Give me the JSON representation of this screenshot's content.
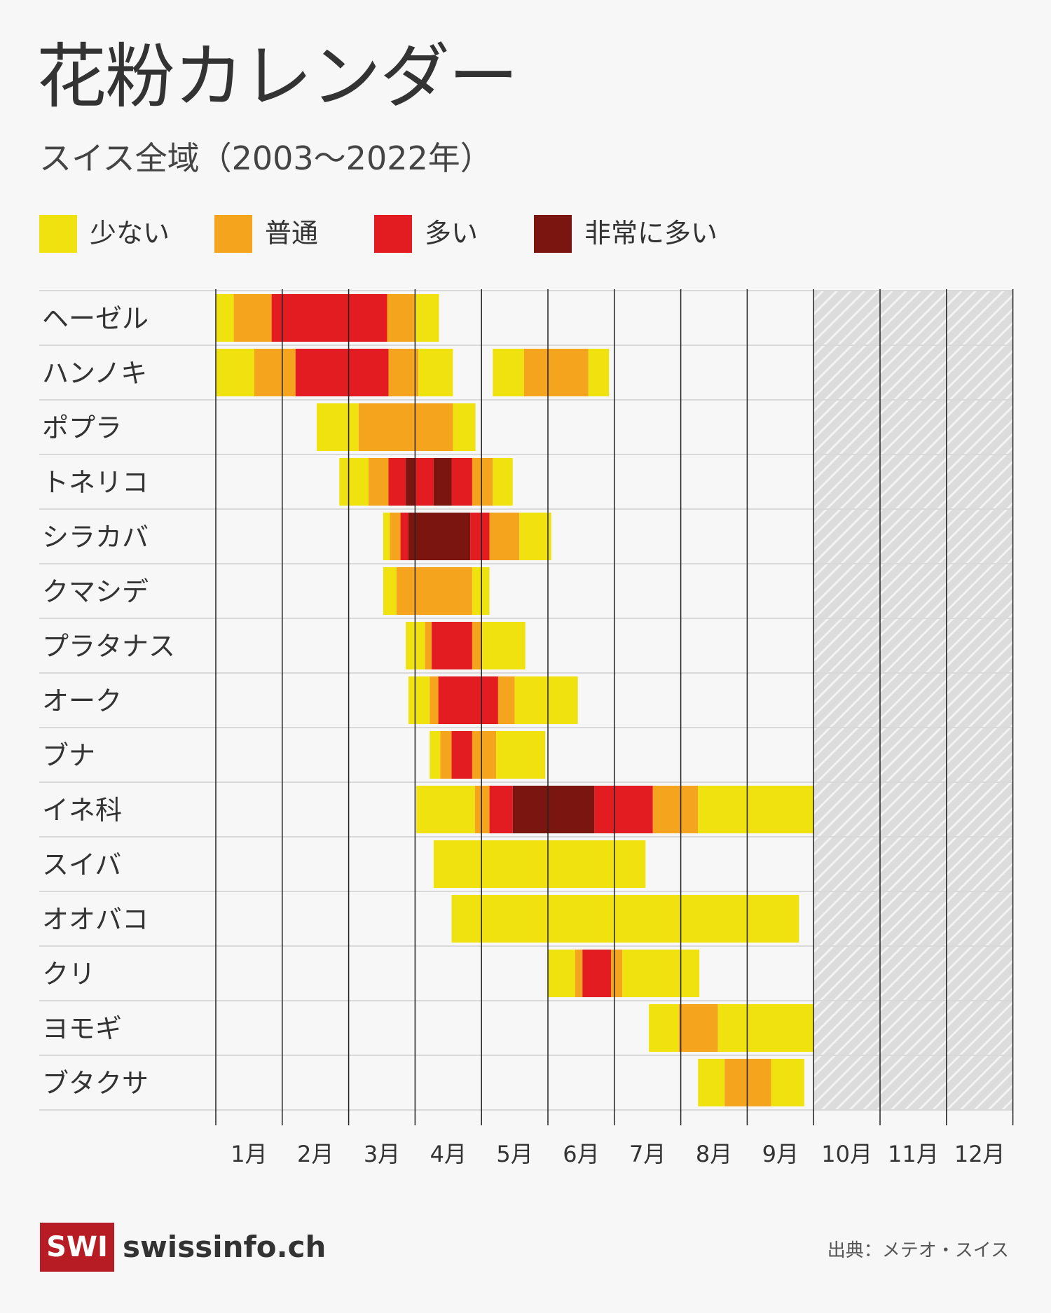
{
  "title": "花粉カレンダー",
  "subtitle": "スイス全域（2003〜2022年）",
  "legend": [
    {
      "label": "少ない",
      "color": "#f0e20f"
    },
    {
      "label": "普通",
      "color": "#f5a51d"
    },
    {
      "label": "多い",
      "color": "#e31c21"
    },
    {
      "label": "非常に多い",
      "color": "#7b150f"
    }
  ],
  "footer": {
    "logo": "SWI",
    "site": "swissinfo.ch",
    "source": "出典：メテオ・スイス"
  },
  "chart_data": {
    "type": "bar",
    "orientation": "horizontal-timeline",
    "x_labels": [
      "1月",
      "2月",
      "3月",
      "4月",
      "5月",
      "6月",
      "7月",
      "8月",
      "9月",
      "10月",
      "11月",
      "12月"
    ],
    "xlim_months": [
      0,
      12
    ],
    "no_data_from_month": 9,
    "levels": [
      "少ない",
      "普通",
      "多い",
      "非常に多い"
    ],
    "categories": [
      "ヘーゼル",
      "ハンノキ",
      "ポプラ",
      "トネリコ",
      "シラカバ",
      "クマシデ",
      "プラタナス",
      "オーク",
      "ブナ",
      "イネ科",
      "スイバ",
      "オオバコ",
      "クリ",
      "ヨモギ",
      "ブタクサ"
    ],
    "series": [
      {
        "category": "ヘーゼル",
        "segments": [
          [
            0,
            0.27,
            0
          ],
          [
            0.27,
            0.84,
            1
          ],
          [
            0.84,
            2.58,
            2
          ],
          [
            2.58,
            3.0,
            1
          ],
          [
            3.0,
            3.36,
            0
          ]
        ]
      },
      {
        "category": "ハンノキ",
        "segments": [
          [
            0,
            0.58,
            0
          ],
          [
            0.58,
            1.2,
            1
          ],
          [
            1.2,
            2.6,
            2
          ],
          [
            2.6,
            3.05,
            1
          ],
          [
            3.05,
            3.57,
            0
          ],
          [
            4.17,
            4.64,
            0
          ],
          [
            4.64,
            5.61,
            1
          ],
          [
            5.61,
            5.92,
            0
          ]
        ]
      },
      {
        "category": "ポプラ",
        "segments": [
          [
            1.52,
            2.15,
            0
          ],
          [
            2.15,
            3.57,
            1
          ],
          [
            3.57,
            3.91,
            0
          ]
        ]
      },
      {
        "category": "トネリコ",
        "segments": [
          [
            1.86,
            2.3,
            0
          ],
          [
            2.3,
            2.6,
            1
          ],
          [
            2.6,
            2.86,
            2
          ],
          [
            2.86,
            3.0,
            3
          ],
          [
            3.0,
            3.28,
            2
          ],
          [
            3.28,
            3.55,
            3
          ],
          [
            3.55,
            3.86,
            2
          ],
          [
            3.86,
            4.17,
            1
          ],
          [
            4.17,
            4.47,
            0
          ]
        ]
      },
      {
        "category": "シラカバ",
        "segments": [
          [
            2.52,
            2.62,
            0
          ],
          [
            2.62,
            2.78,
            1
          ],
          [
            2.78,
            2.9,
            2
          ],
          [
            2.9,
            3.83,
            3
          ],
          [
            3.83,
            4.12,
            2
          ],
          [
            4.12,
            4.57,
            1
          ],
          [
            4.57,
            5.05,
            0
          ]
        ]
      },
      {
        "category": "クマシデ",
        "segments": [
          [
            2.52,
            2.72,
            0
          ],
          [
            2.72,
            3.86,
            1
          ],
          [
            3.86,
            4.12,
            0
          ]
        ]
      },
      {
        "category": "プラタナス",
        "segments": [
          [
            2.86,
            3.15,
            0
          ],
          [
            3.15,
            3.25,
            1
          ],
          [
            3.25,
            3.86,
            2
          ],
          [
            3.86,
            4.01,
            1
          ],
          [
            4.01,
            4.66,
            0
          ]
        ]
      },
      {
        "category": "オーク",
        "segments": [
          [
            2.9,
            3.22,
            0
          ],
          [
            3.22,
            3.35,
            1
          ],
          [
            3.35,
            4.25,
            2
          ],
          [
            4.25,
            4.5,
            1
          ],
          [
            4.5,
            5.45,
            0
          ]
        ]
      },
      {
        "category": "ブナ",
        "segments": [
          [
            3.22,
            3.38,
            0
          ],
          [
            3.38,
            3.55,
            1
          ],
          [
            3.55,
            3.86,
            2
          ],
          [
            3.86,
            4.22,
            1
          ],
          [
            4.22,
            4.96,
            0
          ]
        ]
      },
      {
        "category": "イネ科",
        "segments": [
          [
            3.02,
            3.9,
            0
          ],
          [
            3.9,
            4.12,
            1
          ],
          [
            4.12,
            4.47,
            2
          ],
          [
            4.47,
            5.7,
            3
          ],
          [
            5.7,
            6.58,
            2
          ],
          [
            6.58,
            7.26,
            1
          ],
          [
            7.26,
            9.0,
            0
          ]
        ]
      },
      {
        "category": "スイバ",
        "segments": [
          [
            3.28,
            6.47,
            0
          ]
        ]
      },
      {
        "category": "オオバコ",
        "segments": [
          [
            3.55,
            8.78,
            0
          ]
        ]
      },
      {
        "category": "クリ",
        "segments": [
          [
            5.0,
            5.41,
            0
          ],
          [
            5.41,
            5.52,
            1
          ],
          [
            5.52,
            5.95,
            2
          ],
          [
            5.95,
            6.12,
            1
          ],
          [
            6.12,
            7.28,
            0
          ]
        ]
      },
      {
        "category": "ヨモギ",
        "segments": [
          [
            6.52,
            6.97,
            0
          ],
          [
            6.97,
            7.56,
            1
          ],
          [
            7.56,
            9.0,
            0
          ]
        ]
      },
      {
        "category": "ブタクサ",
        "segments": [
          [
            7.26,
            7.66,
            0
          ],
          [
            7.66,
            8.36,
            1
          ],
          [
            8.36,
            8.86,
            0
          ]
        ]
      }
    ]
  }
}
